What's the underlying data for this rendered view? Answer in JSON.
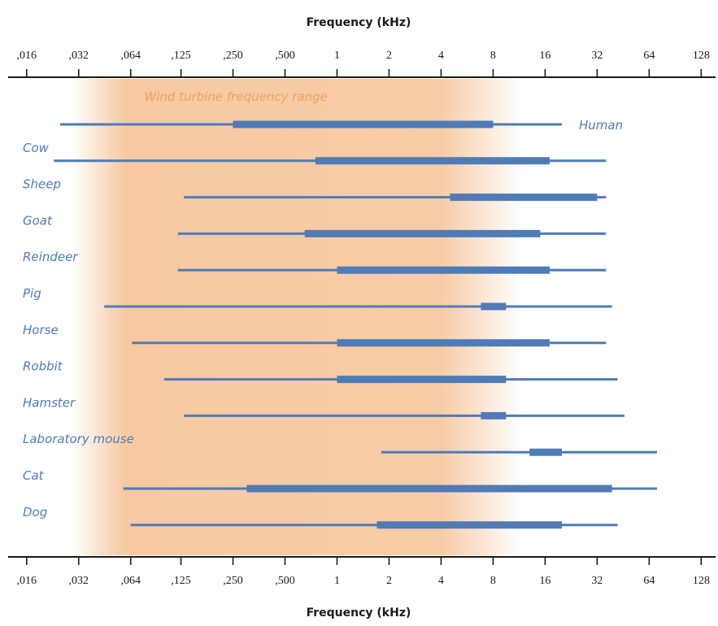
{
  "chart_data": {
    "type": "range",
    "title": "",
    "xlabel_top": "Frequency (kHz)",
    "xlabel_bottom": "Frequency (kHz)",
    "xscale": "log2",
    "xlim": [
      0.0125,
      155
    ],
    "ticks": [
      {
        "value": 0.016,
        "label": ",016"
      },
      {
        "value": 0.032,
        "label": ",032"
      },
      {
        "value": 0.064,
        "label": ",064"
      },
      {
        "value": 0.125,
        "label": ",125"
      },
      {
        "value": 0.25,
        "label": ",250"
      },
      {
        "value": 0.5,
        "label": ",500"
      },
      {
        "value": 1,
        "label": "1"
      },
      {
        "value": 2,
        "label": "2"
      },
      {
        "value": 4,
        "label": "4"
      },
      {
        "value": 8,
        "label": "8"
      },
      {
        "value": 16,
        "label": "16"
      },
      {
        "value": 32,
        "label": "32"
      },
      {
        "value": 64,
        "label": "64"
      },
      {
        "value": 128,
        "label": "128"
      }
    ],
    "band": {
      "label": "Wind turbine frequency range",
      "from": 0.04,
      "to": 8.5,
      "color": "#f6c9a2"
    },
    "series": [
      {
        "name": "Human",
        "label_side": "right",
        "range": [
          0.025,
          20
        ],
        "best": [
          0.25,
          8
        ]
      },
      {
        "name": "Cow",
        "label_side": "left",
        "range": [
          0.023,
          36
        ],
        "best": [
          0.75,
          17
        ]
      },
      {
        "name": "Sheep",
        "label_side": "left",
        "range": [
          0.13,
          36
        ],
        "best": [
          4.5,
          32
        ]
      },
      {
        "name": "Goat",
        "label_side": "left",
        "range": [
          0.12,
          36
        ],
        "best": [
          0.65,
          15
        ]
      },
      {
        "name": "Reindeer",
        "label_side": "left",
        "range": [
          0.12,
          36
        ],
        "best": [
          1,
          17
        ]
      },
      {
        "name": "Pig",
        "label_side": "left",
        "range": [
          0.045,
          39
        ],
        "best": [
          6.8,
          9.5
        ]
      },
      {
        "name": "Horse",
        "label_side": "left",
        "range": [
          0.065,
          36
        ],
        "best": [
          1,
          17
        ]
      },
      {
        "name": "Robbit",
        "label_side": "left",
        "range": [
          0.1,
          42
        ],
        "best": [
          1,
          9.5
        ]
      },
      {
        "name": "Hamster",
        "label_side": "left",
        "range": [
          0.13,
          46
        ],
        "best": [
          6.8,
          9.5
        ]
      },
      {
        "name": "Laboratory mouse",
        "label_side": "left",
        "range": [
          1.8,
          71
        ],
        "best": [
          13,
          20
        ]
      },
      {
        "name": "Cat",
        "label_side": "left",
        "range": [
          0.058,
          71
        ],
        "best": [
          0.3,
          39
        ]
      },
      {
        "name": "Dog",
        "label_side": "left",
        "range": [
          0.064,
          42
        ],
        "best": [
          1.7,
          20
        ]
      }
    ],
    "line_color": "#4f7bb7",
    "grid": false,
    "legend": "none"
  }
}
